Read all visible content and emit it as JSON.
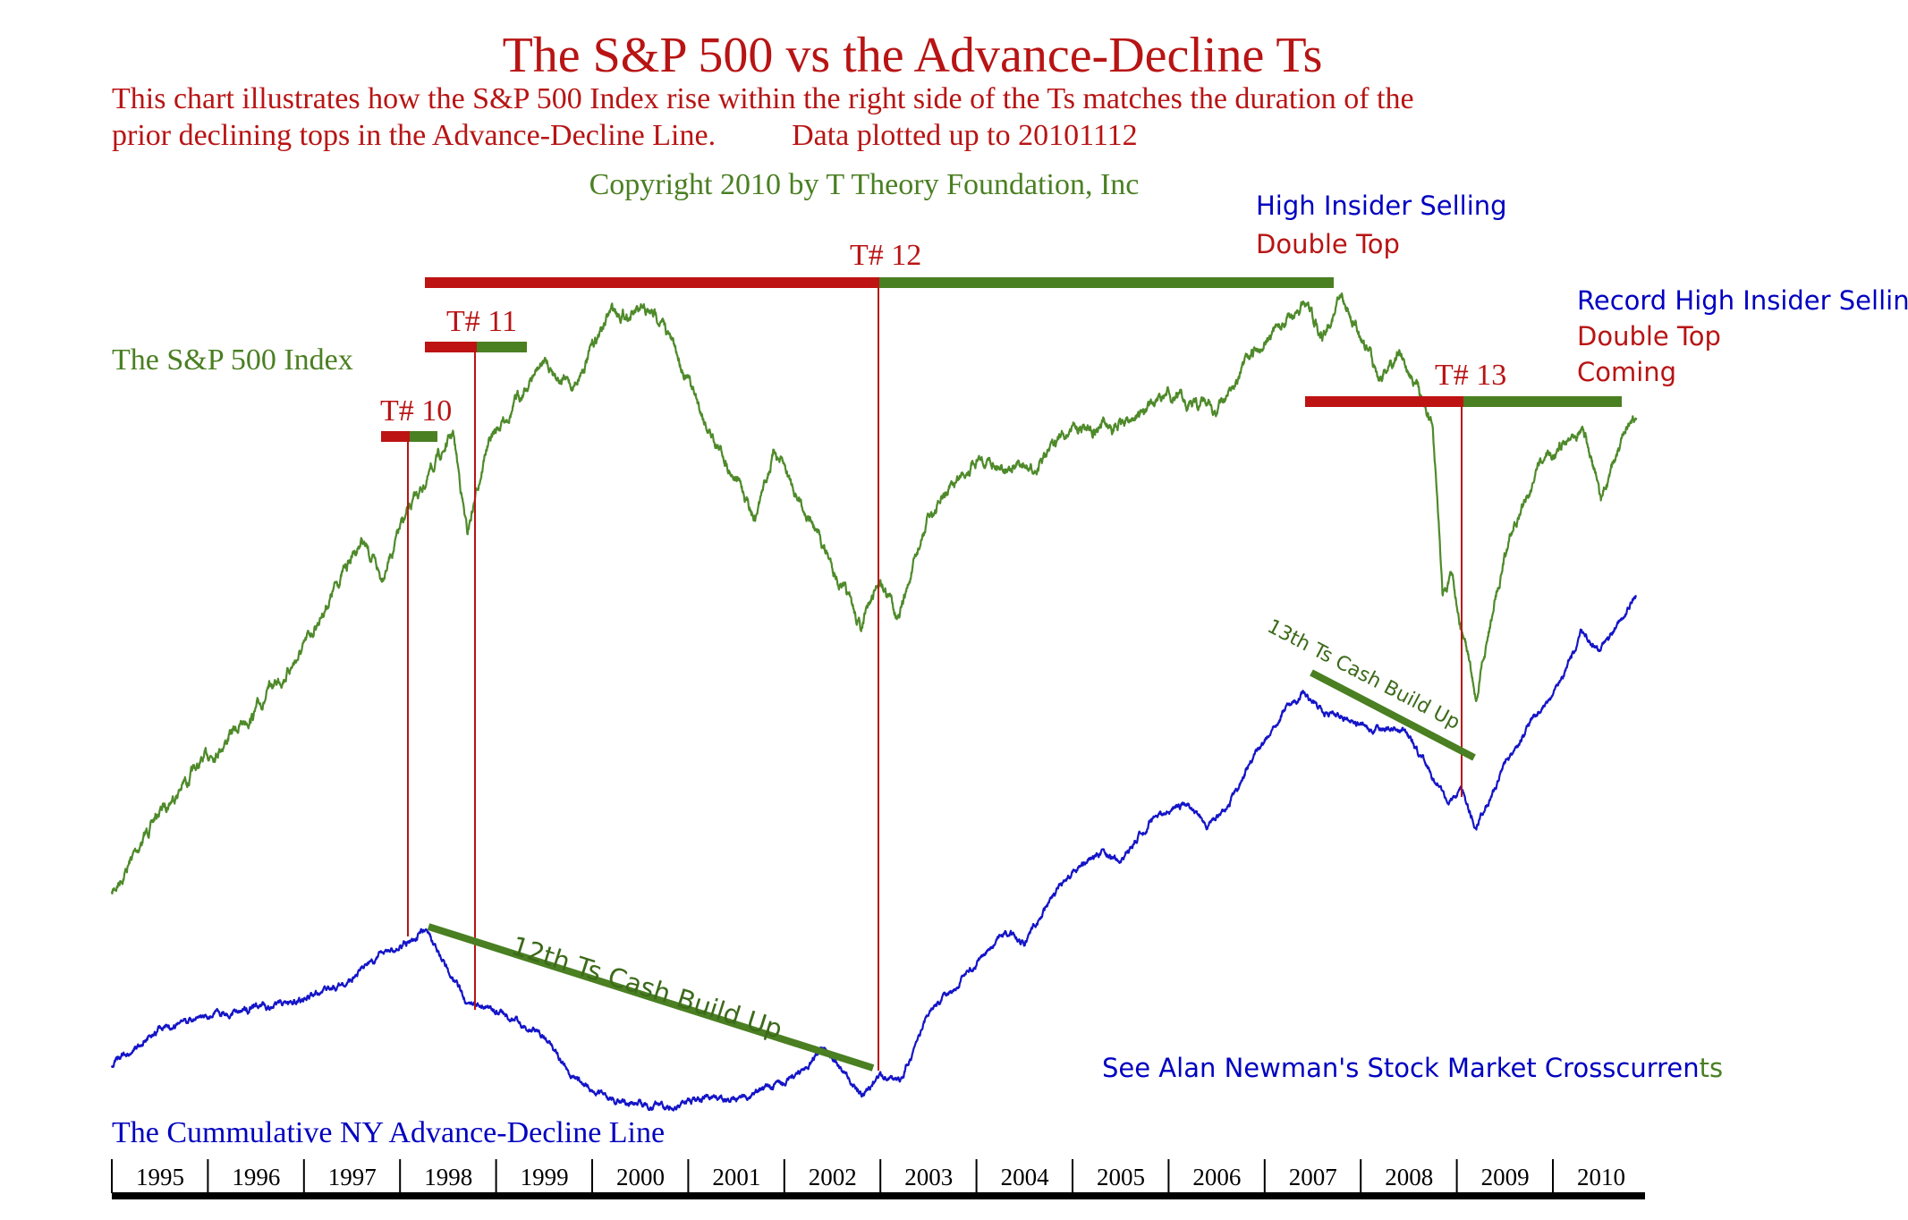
{
  "header": {
    "title": "The S&P 500 vs the Advance-Decline Ts",
    "subtitle_line1": "This chart illustrates how the S&P 500 Index rise within the right  side of the Ts matches the duration of the",
    "subtitle_line2": "prior declining tops in the Advance-Decline Line.          Data plotted up to 20101112",
    "copyright": "Copyright 2010 by T Theory Foundation, Inc"
  },
  "colors": {
    "red": "#bd1313",
    "green": "#4a7f22",
    "blue": "#0000c0",
    "sp_line": "#4e8a2a",
    "ad_line": "#1414c8"
  },
  "chart_data": {
    "type": "line",
    "x_axis": {
      "type": "year",
      "tick_labels": [
        "1995",
        "1996",
        "1997",
        "1998",
        "1999",
        "2000",
        "2001",
        "2002",
        "2003",
        "2004",
        "2005",
        "2006",
        "2007",
        "2008",
        "2009",
        "2010"
      ],
      "range": [
        1995,
        2011
      ]
    },
    "grid": false,
    "series": [
      {
        "name": "The S&P 500 Index",
        "scale": "log",
        "color": "#4e8a2a",
        "x": [
          1995.0,
          1995.5,
          1996.0,
          1996.5,
          1997.0,
          1997.6,
          1997.8,
          1998.0,
          1998.55,
          1998.7,
          1998.9,
          1999.5,
          1999.8,
          2000.2,
          2000.7,
          2001.2,
          2001.7,
          2001.9,
          2002.5,
          2002.8,
          2003.0,
          2003.2,
          2003.5,
          2004.0,
          2004.6,
          2005.0,
          2005.5,
          2006.0,
          2006.5,
          2007.0,
          2007.4,
          2007.6,
          2007.8,
          2008.2,
          2008.4,
          2008.75,
          2008.85,
          2008.95,
          2009.2,
          2009.5,
          2009.8,
          2010.3,
          2010.5,
          2010.65,
          2010.87
        ],
        "values": [
          460,
          545,
          610,
          670,
          760,
          950,
          880,
          970,
          1180,
          960,
          1150,
          1370,
          1300,
          1520,
          1500,
          1200,
          1000,
          1140,
          900,
          790,
          880,
          810,
          990,
          1130,
          1090,
          1200,
          1200,
          1280,
          1240,
          1430,
          1530,
          1450,
          1560,
          1330,
          1400,
          1200,
          850,
          880,
          680,
          920,
          1080,
          1210,
          1030,
          1120,
          1220
        ]
      },
      {
        "name": "The Cummulative NY Advance-Decline Line",
        "color": "#1414c8",
        "x": [
          1995.0,
          1995.5,
          1996.0,
          1996.5,
          1997.0,
          1997.5,
          1997.8,
          1998.0,
          1998.25,
          1998.45,
          1998.7,
          1999.0,
          1999.5,
          1999.8,
          2000.2,
          2000.6,
          2000.9,
          2001.2,
          2001.5,
          2001.8,
          2002.2,
          2002.4,
          2002.6,
          2002.8,
          2003.0,
          2003.2,
          2003.5,
          2003.9,
          2004.3,
          2004.5,
          2004.9,
          2005.3,
          2005.5,
          2005.8,
          2006.2,
          2006.4,
          2006.6,
          2006.9,
          2007.2,
          2007.4,
          2007.6,
          2007.9,
          2008.2,
          2008.45,
          2008.65,
          2008.9,
          2009.05,
          2009.2,
          2009.5,
          2009.8,
          2010.0,
          2010.3,
          2010.5,
          2010.87
        ],
        "values": [
          0,
          30,
          40,
          47,
          53,
          70,
          90,
          97,
          110,
          85,
          50,
          45,
          25,
          -10,
          -30,
          -35,
          -35,
          -25,
          -30,
          -20,
          -5,
          13,
          -5,
          -25,
          -10,
          -15,
          40,
          75,
          110,
          100,
          150,
          175,
          165,
          200,
          215,
          195,
          210,
          255,
          290,
          305,
          290,
          285,
          275,
          277,
          250,
          215,
          225,
          195,
          245,
          285,
          300,
          355,
          340,
          385
        ]
      }
    ],
    "annotations": {
      "t10": "T# 10",
      "t11": "T# 11",
      "t12": "T# 12",
      "t13": "T# 13",
      "cash12": "12th Ts Cash Build Up",
      "cash13": "13th Ts Cash Build Up",
      "high_insider": "High Insider Selling",
      "double_top": "Double Top",
      "record_insider": "Record High Insider Selling",
      "double_top2": "Double Top",
      "coming": "Coming",
      "sp_label": "The S&P 500 Index",
      "ad_label": "The Cummulative NY Advance-Decline Line",
      "source_main": "See Alan Newman's Stock Market Crosscurren",
      "source_tail": "ts"
    }
  }
}
